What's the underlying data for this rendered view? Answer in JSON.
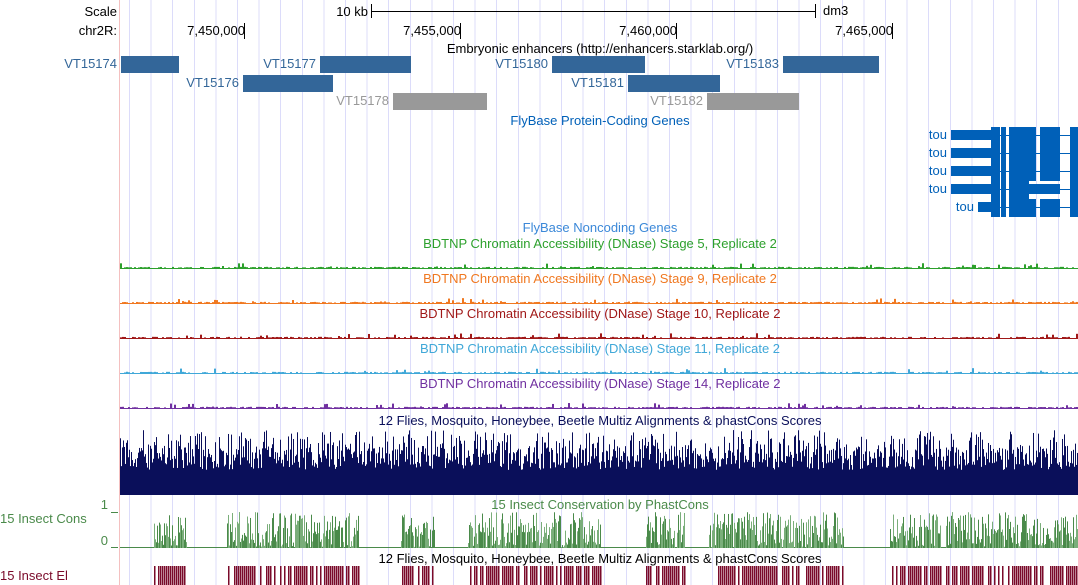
{
  "header": {
    "scale_label": "Scale",
    "scale_bar": "10 kb",
    "assembly": "dm3",
    "chrom_label": "chr2R:",
    "ticks": [
      "7,450,000",
      "7,455,000",
      "7,460,000",
      "7,465,000"
    ]
  },
  "colors": {
    "enhancer": "#336699",
    "enhancer_gray": "#999999",
    "flybase": "#0060b8",
    "noncoding": "#3b88d8",
    "stage5": "#2ca02c",
    "stage9": "#f07820",
    "stage10": "#a01818",
    "stage11": "#40a8d8",
    "stage14": "#7030a0",
    "multiz": "#0a0f5a",
    "cons": "#4a8a4a",
    "el": "#7a0a2a"
  },
  "enhancers": {
    "title": "Embryonic enhancers (http://enhancers.starklab.org/)",
    "items": [
      {
        "name": "VT15174",
        "gray": false
      },
      {
        "name": "VT15177",
        "gray": false
      },
      {
        "name": "VT15176",
        "gray": false
      },
      {
        "name": "VT15178",
        "gray": true
      },
      {
        "name": "VT15180",
        "gray": false
      },
      {
        "name": "VT15181",
        "gray": false
      },
      {
        "name": "VT15182",
        "gray": true
      },
      {
        "name": "VT15183",
        "gray": false
      }
    ]
  },
  "genes": {
    "title": "FlyBase Protein-Coding Genes",
    "items": [
      "tou",
      "tou",
      "tou",
      "tou",
      "tou"
    ]
  },
  "noncoding": {
    "title": "FlyBase Noncoding Genes"
  },
  "dnase": [
    "BDTNP Chromatin Accessibility (DNase) Stage 5, Replicate 2",
    "BDTNP Chromatin Accessibility (DNase) Stage 9, Replicate 2",
    "BDTNP Chromatin Accessibility (DNase) Stage 10, Replicate 2",
    "BDTNP Chromatin Accessibility (DNase) Stage 11, Replicate 2",
    "BDTNP Chromatin Accessibility (DNase) Stage 14, Replicate 2"
  ],
  "multiz": {
    "title": "12 Flies, Mosquito, Honeybee, Beetle Multiz Alignments & phastCons Scores"
  },
  "cons": {
    "title": "15 Insect Conservation by PhastCons",
    "side_label": "15 Insect Cons",
    "ymax": "1",
    "ymin": "0"
  },
  "el": {
    "title": "12 Flies, Mosquito, Honeybee, Beetle Multiz Alignments & phastCons Scores",
    "side_label": "15 Insect El"
  }
}
